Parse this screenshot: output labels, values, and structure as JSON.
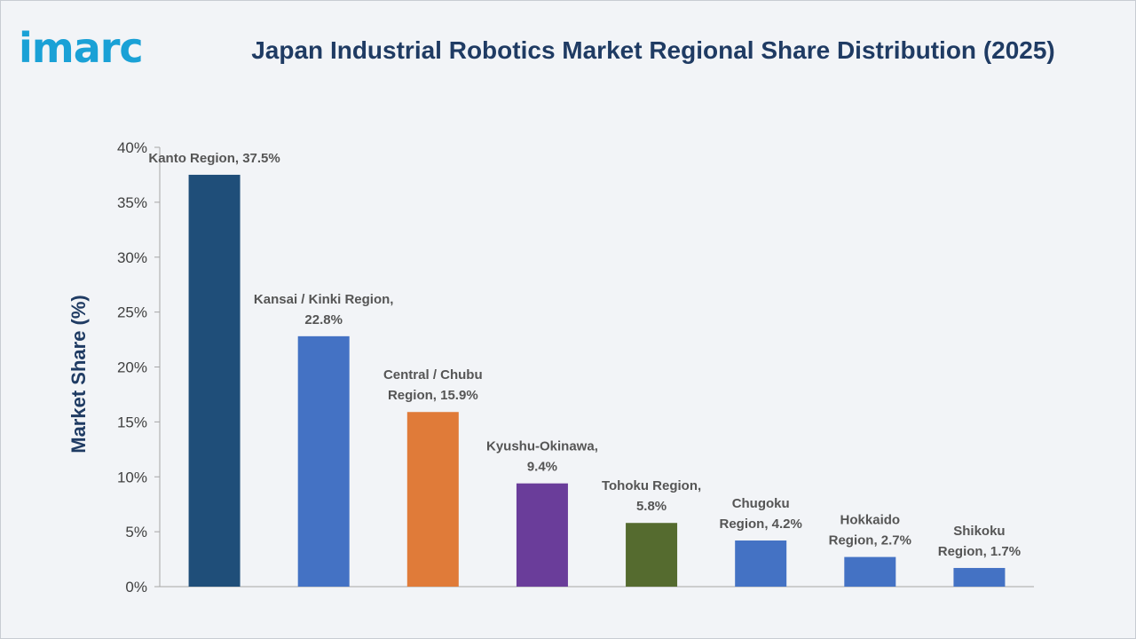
{
  "brand": {
    "logo_text": "imarc",
    "logo_color": "#1aa1d6"
  },
  "chart_data": {
    "type": "bar",
    "title": "Japan Industrial Robotics Market Regional Share Distribution (2025)",
    "xlabel": "",
    "ylabel": "Market Share (%)",
    "ylim": [
      0,
      40
    ],
    "yticks": [
      "0%",
      "5%",
      "10%",
      "15%",
      "20%",
      "25%",
      "30%",
      "35%",
      "40%"
    ],
    "grid": false,
    "categories": [
      "Kanto Region",
      "Kansai / Kinki Region",
      "Central / Chubu Region",
      "Kyushu-Okinawa",
      "Tohoku Region",
      "Chugoku Region",
      "Hokkaido Region",
      "Shikoku Region"
    ],
    "values": [
      37.5,
      22.8,
      15.9,
      9.4,
      5.8,
      4.2,
      2.7,
      1.7
    ],
    "data_labels": [
      [
        "Kanto Region, 37.5%"
      ],
      [
        "Kansai / Kinki Region,",
        "22.8%"
      ],
      [
        "Central / Chubu",
        "Region, 15.9%"
      ],
      [
        "Kyushu-Okinawa,",
        "9.4%"
      ],
      [
        "Tohoku Region,",
        "5.8%"
      ],
      [
        "Chugoku",
        "Region, 4.2%"
      ],
      [
        "Hokkaido",
        "Region, 2.7%"
      ],
      [
        "Shikoku",
        "Region, 1.7%"
      ]
    ],
    "colors": [
      "#1f4e79",
      "#4472c4",
      "#e07b39",
      "#6a3d9a",
      "#556b2f",
      "#4472c4",
      "#4472c4",
      "#4472c4"
    ]
  }
}
